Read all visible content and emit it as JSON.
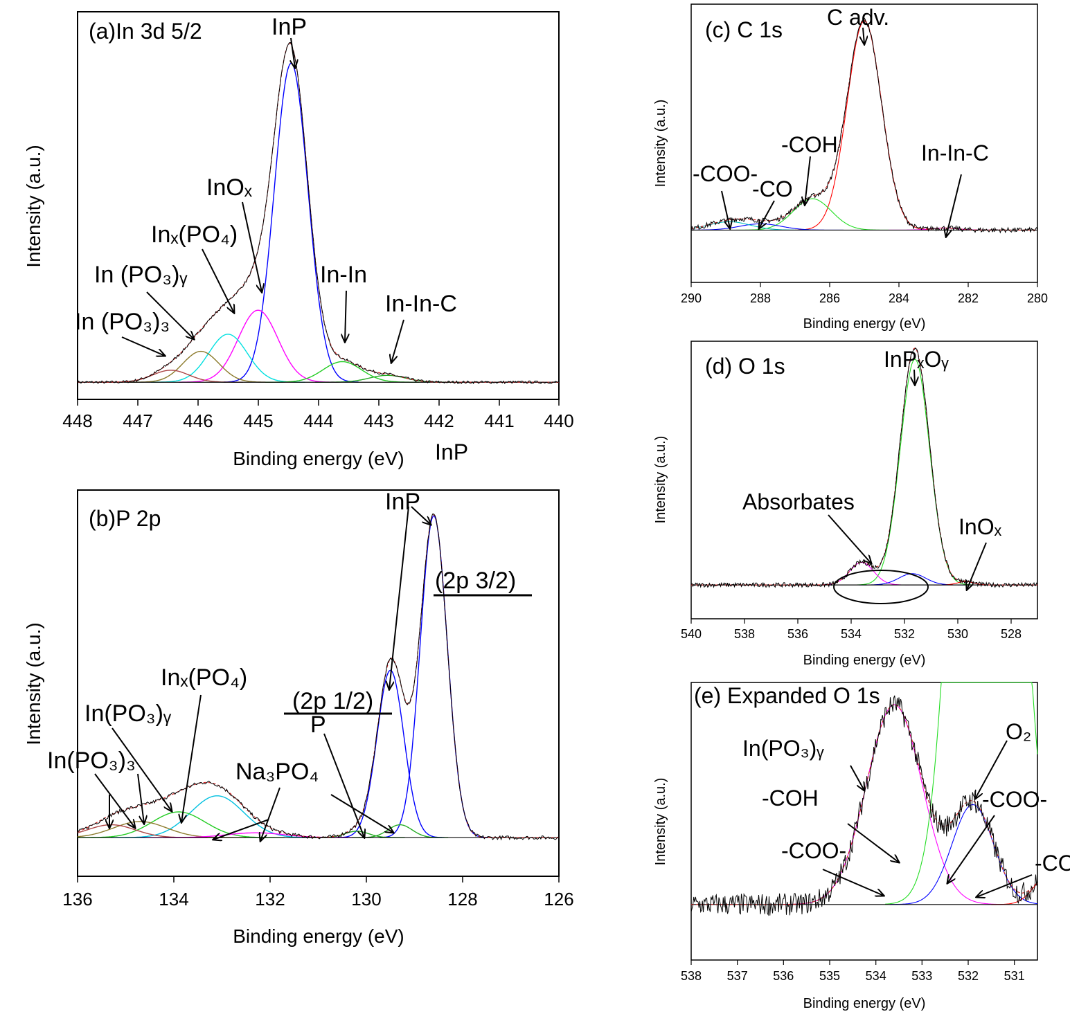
{
  "chart_data": [
    {
      "id": "a",
      "type": "line",
      "title": "(a)In 3d 5/2",
      "xlabel": "Binding energy (eV)",
      "ylabel": "Intensity (a.u.)",
      "xlim": [
        448,
        440
      ],
      "ylim": [
        -0.05,
        1.08
      ],
      "xticks": [
        "448",
        "447",
        "446",
        "445",
        "444",
        "443",
        "442",
        "441",
        "440"
      ],
      "extra_text": "InP",
      "series": [
        {
          "color": "#0000ff",
          "center": 444.45,
          "height": 0.93,
          "width": 0.28
        },
        {
          "color": "#ff00ff",
          "center": 445.0,
          "height": 0.21,
          "width": 0.33
        },
        {
          "color": "#00e0e0",
          "center": 445.5,
          "height": 0.14,
          "width": 0.32
        },
        {
          "color": "#8b7a2a",
          "center": 445.95,
          "height": 0.09,
          "width": 0.3
        },
        {
          "color": "#aa4444",
          "center": 446.45,
          "height": 0.035,
          "width": 0.3
        },
        {
          "color": "#22cc22",
          "center": 443.6,
          "height": 0.06,
          "width": 0.32
        },
        {
          "color": "#22aa22",
          "center": 442.85,
          "height": 0.02,
          "width": 0.3
        }
      ],
      "annotations": [
        {
          "text": "InP",
          "x": 444.4,
          "y": 0.98
        },
        {
          "text": "InOₓ",
          "x": 445.0,
          "y": 0.21
        },
        {
          "text": "Inₓ(PO₄)",
          "x": 445.5,
          "y": 0.14
        },
        {
          "text": "In (PO₃)ᵧ",
          "x": 446.1,
          "y": 0.08
        },
        {
          "text": "In (PO₃)₃",
          "x": 446.6,
          "y": 0.03
        },
        {
          "text": "In-In",
          "x": 443.55,
          "y": 0.07
        },
        {
          "text": "In-In-C",
          "x": 442.75,
          "y": 0.02
        }
      ]
    },
    {
      "id": "b",
      "type": "line",
      "title": "(b)P 2p",
      "xlabel": "Binding energy (eV)",
      "ylabel": "Intensity (a.u.)",
      "xlim": [
        136,
        126
      ],
      "ylim": [
        -0.12,
        1.08
      ],
      "xticks": [
        "136",
        "134",
        "132",
        "130",
        "128",
        "126"
      ],
      "series": [
        {
          "color": "#0000ff",
          "center": 128.6,
          "height": 1.0,
          "width": 0.28
        },
        {
          "color": "#0000ff",
          "center": 129.5,
          "height": 0.52,
          "width": 0.28
        },
        {
          "color": "#00c0e0",
          "center": 133.1,
          "height": 0.13,
          "width": 0.55
        },
        {
          "color": "#22cc22",
          "center": 133.9,
          "height": 0.08,
          "width": 0.55
        },
        {
          "color": "#8b7a2a",
          "center": 134.7,
          "height": 0.05,
          "width": 0.55
        },
        {
          "color": "#aa4444",
          "center": 135.3,
          "height": 0.04,
          "width": 0.5
        },
        {
          "color": "#ff00ff",
          "center": 132.3,
          "height": 0.015,
          "width": 0.6
        },
        {
          "color": "#22aa22",
          "center": 129.3,
          "height": 0.04,
          "width": 0.25
        },
        {
          "color": "#22aa22",
          "center": 130.2,
          "height": 0.02,
          "width": 0.25
        }
      ],
      "annotations": [
        {
          "text": "InP",
          "x": 128.6,
          "y": 1.0
        },
        {
          "text": "(2p 3/2)",
          "x": 128.6,
          "y": 0.8
        },
        {
          "text": "(2p 1/2)",
          "x": 129.5,
          "y": 0.4
        },
        {
          "text": "P",
          "x": 130.0,
          "y": 0.02
        },
        {
          "text": "Inₓ(PO₄)",
          "x": 133.8,
          "y": 0.05
        },
        {
          "text": "In(PO₃)ᵧ",
          "x": 134.2,
          "y": 0.07
        },
        {
          "text": "In(PO₃)₃",
          "x": 135.3,
          "y": 0.03
        },
        {
          "text": "Na₃PO₄",
          "x": 132.2,
          "y": 0.0
        }
      ]
    },
    {
      "id": "c",
      "type": "line",
      "title": "(c) C 1s",
      "xlabel": "Binding energy (eV)",
      "ylabel": "Intensity (a.u.)",
      "xlim": [
        290,
        280
      ],
      "ylim": [
        -0.25,
        1.08
      ],
      "xticks": [
        "290",
        "288",
        "286",
        "284",
        "282",
        "280"
      ],
      "series": [
        {
          "color": "#ff0000",
          "center": 285.0,
          "height": 1.0,
          "width": 0.5
        },
        {
          "color": "#22dd22",
          "center": 286.5,
          "height": 0.15,
          "width": 0.55
        },
        {
          "color": "#0000ff",
          "center": 288.0,
          "height": 0.03,
          "width": 0.6
        },
        {
          "color": "#00c0c0",
          "center": 288.9,
          "height": 0.04,
          "width": 0.6
        },
        {
          "color": "#ff00ff",
          "center": 282.7,
          "height": 0.01,
          "width": 0.4
        }
      ],
      "annotations": [
        {
          "text": "C adv.",
          "x": 285.0,
          "y": 1.0
        },
        {
          "text": "-COH",
          "x": 286.6,
          "y": 0.15
        },
        {
          "text": "-CO",
          "x": 288.0,
          "y": 0.03
        },
        {
          "text": "-COO-",
          "x": 288.9,
          "y": 0.04
        },
        {
          "text": "In-In-C",
          "x": 282.6,
          "y": 0.01
        }
      ]
    },
    {
      "id": "d",
      "type": "line",
      "title": "(d) O 1s",
      "xlabel": "Binding energy (eV)",
      "ylabel": "Intensity (a.u.)",
      "xlim": [
        540,
        527
      ],
      "ylim": [
        -0.15,
        1.08
      ],
      "xticks": [
        "540",
        "538",
        "536",
        "534",
        "532",
        "530",
        "528"
      ],
      "series": [
        {
          "color": "#22dd22",
          "center": 531.6,
          "height": 1.0,
          "width": 0.55
        },
        {
          "color": "#ff00ff",
          "center": 533.6,
          "height": 0.1,
          "width": 0.45
        },
        {
          "color": "#0000ff",
          "center": 531.7,
          "height": 0.05,
          "width": 0.5
        },
        {
          "color": "#ff0000",
          "center": 529.7,
          "height": 0.015,
          "width": 0.3
        }
      ],
      "annotations": [
        {
          "text": "InPₓOᵧ",
          "x": 531.6,
          "y": 1.0
        },
        {
          "text": "Absorbates",
          "x": 533.2,
          "y": 0.12
        },
        {
          "text": "InOₓ",
          "x": 529.7,
          "y": 0.01
        }
      ]
    },
    {
      "id": "e",
      "type": "line",
      "title": "(e) Expanded O 1s",
      "xlabel": "Binding energy (eV)",
      "ylabel": "Intensity (a.u.)",
      "xlim": [
        538,
        530.5
      ],
      "ylim": [
        -0.25,
        1.0
      ],
      "xticks": [
        "538",
        "537",
        "536",
        "535",
        "534",
        "533",
        "532",
        "531"
      ],
      "series": [
        {
          "color": "#ff00ff",
          "center": 533.6,
          "height": 0.9,
          "width": 0.6
        },
        {
          "color": "#0000ff",
          "center": 531.9,
          "height": 0.45,
          "width": 0.45
        },
        {
          "color": "#22dd22",
          "center": 531.6,
          "height": 5.0,
          "width": 0.55
        },
        {
          "color": "#ff0000",
          "center": 530.3,
          "height": 0.12,
          "width": 0.3
        }
      ],
      "annotations": [
        {
          "text": "In(PO₃)ᵧ",
          "x": 534.2,
          "y": 0.5
        },
        {
          "text": "O₂",
          "x": 531.9,
          "y": 0.45
        },
        {
          "text": "-COO-",
          "x": 532.3,
          "y": 0.1
        },
        {
          "text": "-COH",
          "x": 533.5,
          "y": 0.2
        },
        {
          "text": "-COO-",
          "x": 533.8,
          "y": 0.06
        },
        {
          "text": "-CO",
          "x": 531.8,
          "y": 0.05
        }
      ]
    }
  ]
}
